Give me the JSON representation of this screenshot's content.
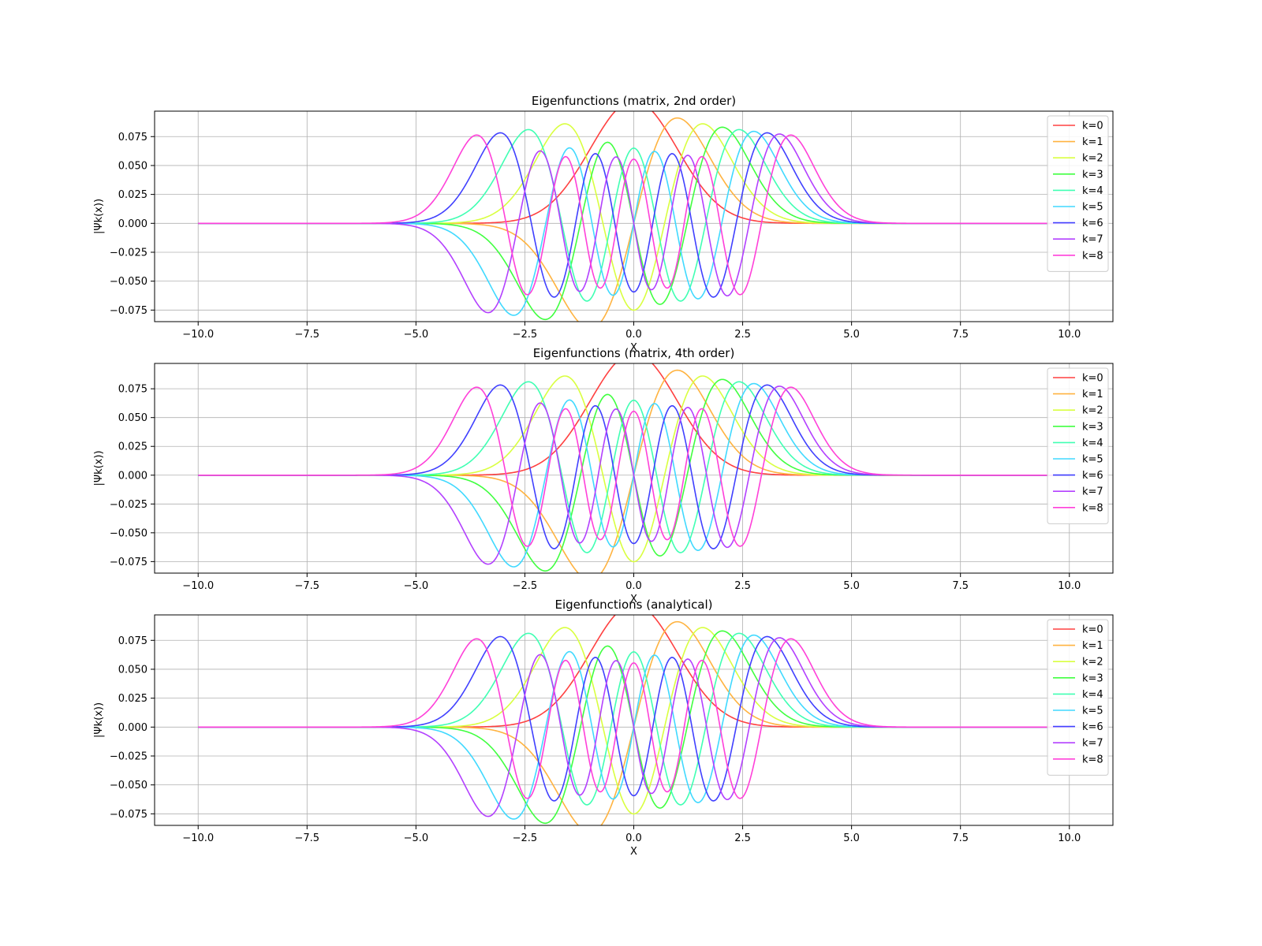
{
  "chart_data": [
    {
      "type": "line",
      "title": "Eigenfunctions (matrix, 2nd order)",
      "xlabel": "X",
      "ylabel": "|Ψk(x))",
      "xlim": [
        -11,
        11
      ],
      "ylim": [
        -0.085,
        0.097
      ],
      "xticks": [
        "−10.0",
        "−7.5",
        "−5.0",
        "−2.5",
        "0.0",
        "2.5",
        "5.0",
        "7.5",
        "10.0"
      ],
      "yticks": [
        "−0.075",
        "−0.050",
        "−0.025",
        "0.000",
        "0.025",
        "0.050",
        "0.075"
      ],
      "grid": true,
      "legend": "top-right",
      "x": [
        -10,
        10
      ],
      "series": [
        {
          "name": "k=0",
          "color": "#ff4040",
          "formula": "hermite-gaussian n=0, normalized, x from -10 to 10"
        },
        {
          "name": "k=1",
          "color": "#ffb340",
          "formula": "hermite-gaussian n=1"
        },
        {
          "name": "k=2",
          "color": "#d9ff40",
          "formula": "hermite-gaussian n=2"
        },
        {
          "name": "k=3",
          "color": "#40ff40",
          "formula": "hermite-gaussian n=3"
        },
        {
          "name": "k=4",
          "color": "#40ffb3",
          "formula": "hermite-gaussian n=4"
        },
        {
          "name": "k=5",
          "color": "#40d9ff",
          "formula": "hermite-gaussian n=5"
        },
        {
          "name": "k=6",
          "color": "#4040ff",
          "formula": "hermite-gaussian n=6"
        },
        {
          "name": "k=7",
          "color": "#b340ff",
          "formula": "hermite-gaussian n=7"
        },
        {
          "name": "k=8",
          "color": "#ff40d9",
          "formula": "hermite-gaussian n=8"
        }
      ]
    },
    {
      "type": "line",
      "title": "Eigenfunctions (matrix, 4th order)",
      "xlabel": "X",
      "ylabel": "|Ψk(x))",
      "xlim": [
        -11,
        11
      ],
      "ylim": [
        -0.085,
        0.097
      ],
      "xticks": [
        "−10.0",
        "−7.5",
        "−5.0",
        "−2.5",
        "0.0",
        "2.5",
        "5.0",
        "7.5",
        "10.0"
      ],
      "yticks": [
        "−0.075",
        "−0.050",
        "−0.025",
        "0.000",
        "0.025",
        "0.050",
        "0.075"
      ],
      "grid": true,
      "legend": "top-right",
      "x": [
        -10,
        10
      ],
      "series": [
        {
          "name": "k=0",
          "color": "#ff4040"
        },
        {
          "name": "k=1",
          "color": "#ffb340"
        },
        {
          "name": "k=2",
          "color": "#d9ff40"
        },
        {
          "name": "k=3",
          "color": "#40ff40"
        },
        {
          "name": "k=4",
          "color": "#40ffb3"
        },
        {
          "name": "k=5",
          "color": "#40d9ff"
        },
        {
          "name": "k=6",
          "color": "#4040ff"
        },
        {
          "name": "k=7",
          "color": "#b340ff"
        },
        {
          "name": "k=8",
          "color": "#ff40d9"
        }
      ]
    },
    {
      "type": "line",
      "title": "Eigenfunctions (analytical)",
      "xlabel": "X",
      "ylabel": "|Ψk(x))",
      "xlim": [
        -11,
        11
      ],
      "ylim": [
        -0.085,
        0.097
      ],
      "xticks": [
        "−10.0",
        "−7.5",
        "−5.0",
        "−2.5",
        "0.0",
        "2.5",
        "5.0",
        "7.5",
        "10.0"
      ],
      "yticks": [
        "−0.075",
        "−0.050",
        "−0.025",
        "0.000",
        "0.025",
        "0.050",
        "0.075"
      ],
      "grid": true,
      "legend": "top-right",
      "x": [
        -10,
        10
      ],
      "series": [
        {
          "name": "k=0",
          "color": "#ff4040"
        },
        {
          "name": "k=1",
          "color": "#ffb340"
        },
        {
          "name": "k=2",
          "color": "#d9ff40"
        },
        {
          "name": "k=3",
          "color": "#40ff40"
        },
        {
          "name": "k=4",
          "color": "#40ffb3"
        },
        {
          "name": "k=5",
          "color": "#40d9ff"
        },
        {
          "name": "k=6",
          "color": "#4040ff"
        },
        {
          "name": "k=7",
          "color": "#b340ff"
        },
        {
          "name": "k=8",
          "color": "#ff40d9"
        }
      ]
    }
  ]
}
